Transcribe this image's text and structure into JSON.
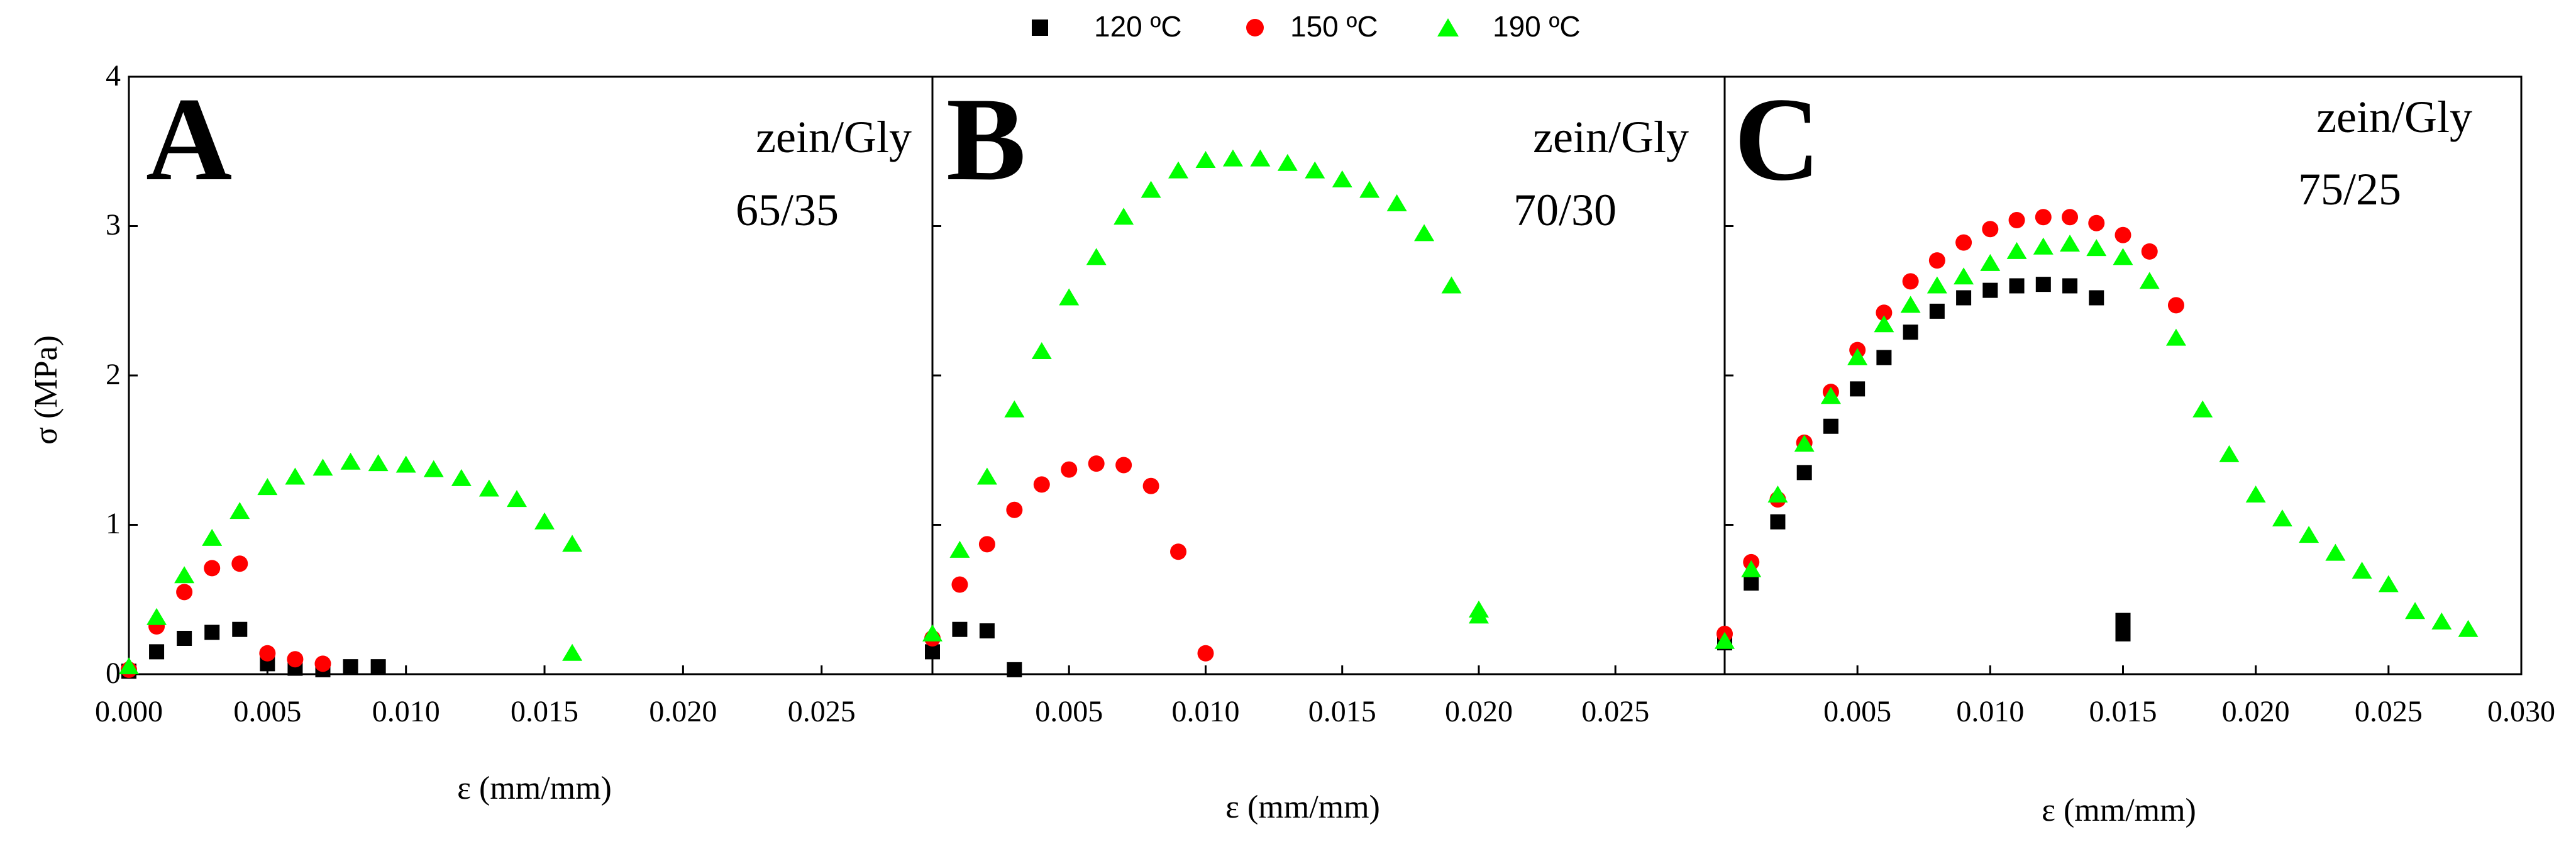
{
  "legend": {
    "placement": "top-center",
    "entries": [
      {
        "label": "120 ºC",
        "marker": "square",
        "color": "#000000"
      },
      {
        "label": "150 ºC",
        "marker": "circle",
        "color": "#ff0000"
      },
      {
        "label": "190 ºC",
        "marker": "triangle",
        "color": "#00ff00"
      }
    ]
  },
  "y_axis": {
    "label": "σ (MPa)",
    "ylim": [
      0,
      4
    ],
    "ticks": [
      0,
      1,
      2,
      3,
      4
    ],
    "tick_labels": [
      "0",
      "1",
      "2",
      "3",
      "4"
    ]
  },
  "chart_data": [
    {
      "type": "scatter",
      "panel_letter": "A",
      "annotation": [
        "zein/Gly",
        "65/35"
      ],
      "xlabel": "ε (mm/mm)",
      "ylabel": "σ (MPa)",
      "xlim": [
        0,
        0.029
      ],
      "ylim": [
        0,
        4
      ],
      "xticks": [
        0.0,
        0.005,
        0.01,
        0.015,
        0.02,
        0.025
      ],
      "xtick_labels": [
        "0.000",
        "0.005",
        "0.010",
        "0.015",
        "0.020",
        "0.025"
      ],
      "series": [
        {
          "name": "120 ºC",
          "x": [
            0.0,
            0.001,
            0.002,
            0.003,
            0.004,
            0.005,
            0.006,
            0.007,
            0.008,
            0.009
          ],
          "y": [
            0.02,
            0.15,
            0.24,
            0.28,
            0.3,
            0.07,
            0.04,
            0.03,
            0.05,
            0.05
          ]
        },
        {
          "name": "150 ºC",
          "x": [
            0.0,
            0.001,
            0.002,
            0.003,
            0.004,
            0.005,
            0.006,
            0.007
          ],
          "y": [
            0.03,
            0.32,
            0.55,
            0.71,
            0.74,
            0.14,
            0.1,
            0.07
          ]
        },
        {
          "name": "190 ºC",
          "x": [
            0.0,
            0.001,
            0.002,
            0.003,
            0.004,
            0.005,
            0.006,
            0.007,
            0.008,
            0.009,
            0.01,
            0.011,
            0.012,
            0.013,
            0.014,
            0.015,
            0.016,
            0.016
          ],
          "y": [
            0.05,
            0.38,
            0.66,
            0.91,
            1.09,
            1.25,
            1.32,
            1.38,
            1.42,
            1.41,
            1.4,
            1.37,
            1.31,
            1.24,
            1.17,
            1.02,
            0.87,
            0.14
          ]
        }
      ]
    },
    {
      "type": "scatter",
      "panel_letter": "B",
      "annotation": [
        "zein/Gly",
        "70/30"
      ],
      "xlabel": "ε (mm/mm)",
      "ylabel": "σ (MPa)",
      "xlim": [
        0,
        0.029
      ],
      "ylim": [
        0,
        4
      ],
      "xticks": [
        0.005,
        0.01,
        0.015,
        0.02,
        0.025
      ],
      "xtick_labels": [
        "0.005",
        "0.010",
        "0.015",
        "0.020",
        "0.025"
      ],
      "series": [
        {
          "name": "120 ºC",
          "x": [
            0.0,
            0.001,
            0.002,
            0.003
          ],
          "y": [
            0.15,
            0.3,
            0.29,
            0.03
          ]
        },
        {
          "name": "150 ºC",
          "x": [
            0.0,
            0.001,
            0.002,
            0.003,
            0.004,
            0.005,
            0.006,
            0.007,
            0.008,
            0.009,
            0.01
          ],
          "y": [
            0.24,
            0.6,
            0.87,
            1.1,
            1.27,
            1.37,
            1.41,
            1.4,
            1.26,
            0.82,
            0.14
          ]
        },
        {
          "name": "190 ºC",
          "x": [
            0.0,
            0.001,
            0.002,
            0.003,
            0.004,
            0.005,
            0.006,
            0.007,
            0.008,
            0.009,
            0.01,
            0.011,
            0.012,
            0.013,
            0.014,
            0.015,
            0.016,
            0.017,
            0.018,
            0.019,
            0.02,
            0.02
          ],
          "y": [
            0.27,
            0.83,
            1.32,
            1.77,
            2.16,
            2.52,
            2.79,
            3.06,
            3.24,
            3.37,
            3.44,
            3.45,
            3.45,
            3.42,
            3.37,
            3.31,
            3.24,
            3.15,
            2.95,
            2.6,
            0.43,
            0.39
          ]
        }
      ]
    },
    {
      "type": "scatter",
      "panel_letter": "C",
      "annotation": [
        "zein/Gly",
        "75/25"
      ],
      "xlabel": "ε (mm/mm)",
      "ylabel": "σ (MPa)",
      "xlim": [
        0,
        0.03
      ],
      "ylim": [
        0,
        4
      ],
      "xticks": [
        0.005,
        0.01,
        0.015,
        0.02,
        0.025,
        0.03
      ],
      "xtick_labels": [
        "0.005",
        "0.010",
        "0.015",
        "0.020",
        "0.025",
        "0.030"
      ],
      "series": [
        {
          "name": "120 ºC",
          "x": [
            0.0,
            0.001,
            0.002,
            0.003,
            0.004,
            0.005,
            0.006,
            0.007,
            0.008,
            0.009,
            0.01,
            0.011,
            0.012,
            0.013,
            0.014,
            0.015,
            0.015
          ],
          "y": [
            0.21,
            0.61,
            1.02,
            1.35,
            1.66,
            1.91,
            2.12,
            2.29,
            2.43,
            2.52,
            2.57,
            2.6,
            2.61,
            2.6,
            2.52,
            0.36,
            0.27
          ]
        },
        {
          "name": "150 ºC",
          "x": [
            0.0,
            0.001,
            0.002,
            0.003,
            0.004,
            0.005,
            0.006,
            0.007,
            0.008,
            0.009,
            0.01,
            0.011,
            0.012,
            0.013,
            0.014,
            0.015,
            0.016,
            0.017
          ],
          "y": [
            0.27,
            0.75,
            1.17,
            1.55,
            1.89,
            2.17,
            2.42,
            2.63,
            2.77,
            2.89,
            2.98,
            3.04,
            3.06,
            3.06,
            3.02,
            2.94,
            2.83,
            2.47
          ]
        },
        {
          "name": "190 ºC",
          "x": [
            0.0,
            0.001,
            0.002,
            0.003,
            0.004,
            0.005,
            0.006,
            0.007,
            0.008,
            0.009,
            0.01,
            0.011,
            0.012,
            0.013,
            0.014,
            0.015,
            0.016,
            0.017,
            0.018,
            0.019,
            0.02,
            0.021,
            0.022,
            0.023,
            0.024,
            0.025,
            0.026,
            0.027,
            0.028
          ],
          "y": [
            0.22,
            0.7,
            1.2,
            1.54,
            1.86,
            2.12,
            2.34,
            2.47,
            2.6,
            2.66,
            2.75,
            2.83,
            2.86,
            2.88,
            2.85,
            2.79,
            2.63,
            2.25,
            1.77,
            1.47,
            1.2,
            1.04,
            0.93,
            0.81,
            0.69,
            0.6,
            0.42,
            0.35,
            0.3
          ]
        }
      ]
    }
  ]
}
